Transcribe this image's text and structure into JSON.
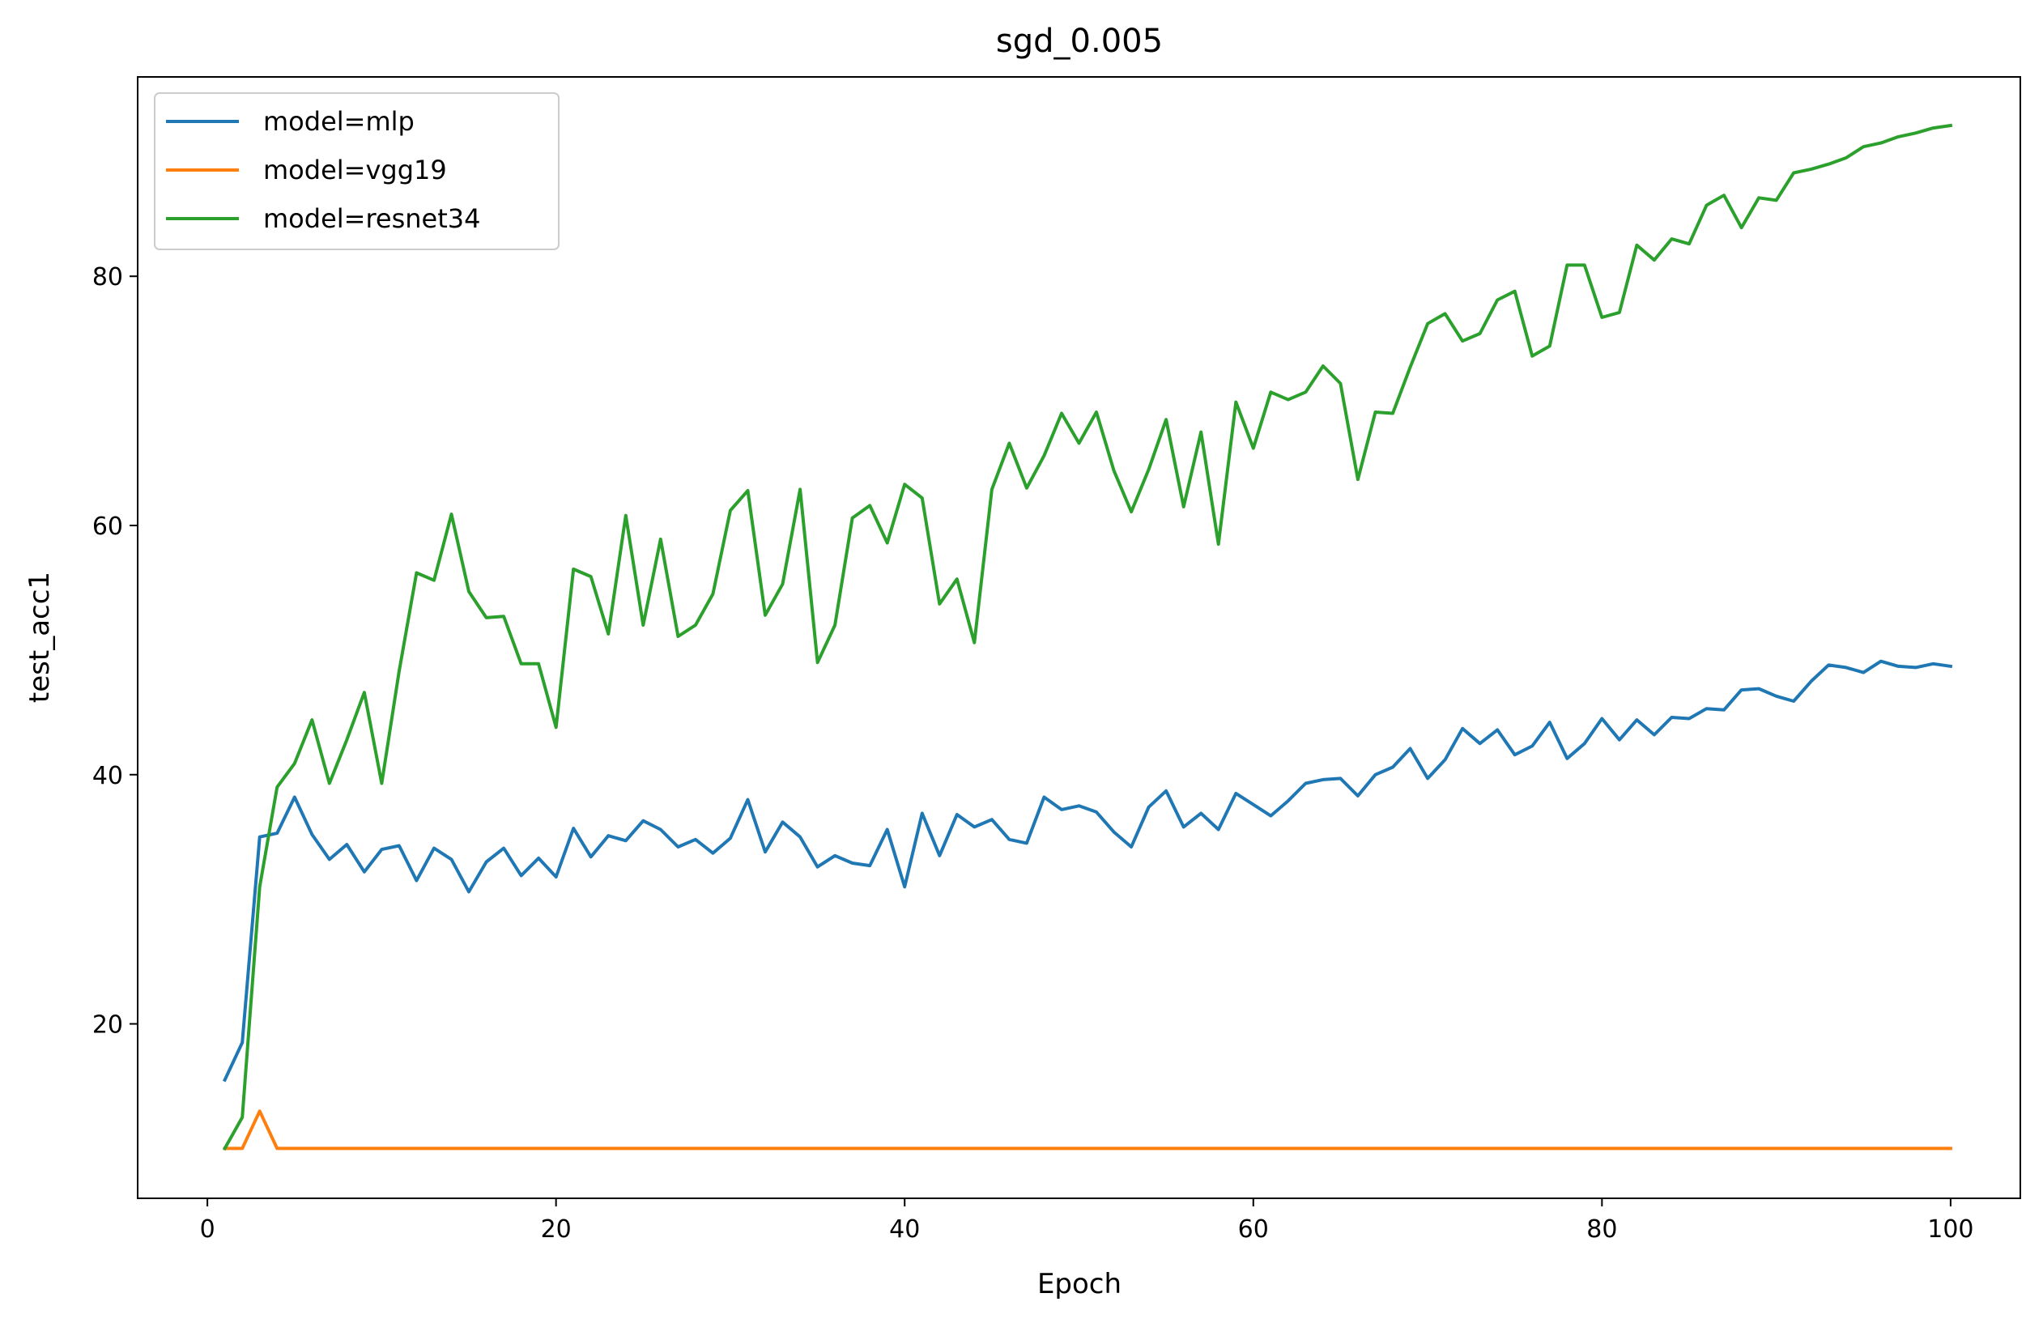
{
  "chart_data": {
    "type": "line",
    "title": "sgd_0.005",
    "xlabel": "Epoch",
    "ylabel": "test_acc1",
    "xlim": [
      -4,
      104
    ],
    "ylim": [
      6,
      96
    ],
    "xticks": [
      0,
      20,
      40,
      60,
      80,
      100
    ],
    "yticks": [
      20,
      40,
      60,
      80
    ],
    "grid": false,
    "legend_position": "top-left",
    "series": [
      {
        "name": "model=mlp",
        "color": "#1f77b4",
        "x": [
          1,
          2,
          3,
          4,
          5,
          6,
          7,
          8,
          9,
          10,
          11,
          12,
          13,
          14,
          15,
          16,
          17,
          18,
          19,
          20,
          21,
          22,
          23,
          24,
          25,
          26,
          27,
          28,
          29,
          30,
          31,
          32,
          33,
          34,
          35,
          36,
          37,
          38,
          39,
          40,
          41,
          42,
          43,
          44,
          45,
          46,
          47,
          48,
          49,
          50,
          51,
          52,
          53,
          54,
          55,
          56,
          57,
          58,
          59,
          60,
          61,
          62,
          63,
          64,
          65,
          66,
          67,
          68,
          69,
          70,
          71,
          72,
          73,
          74,
          75,
          76,
          77,
          78,
          79,
          80,
          81,
          82,
          83,
          84,
          85,
          86,
          87,
          88,
          89,
          90,
          91,
          92,
          93,
          94,
          95,
          96,
          97,
          98,
          99,
          100
        ],
        "y": [
          15.5,
          18.5,
          35.0,
          35.3,
          38.2,
          35.2,
          33.2,
          34.4,
          32.2,
          34.0,
          34.3,
          31.5,
          34.1,
          33.2,
          30.6,
          33.0,
          34.1,
          31.9,
          33.3,
          31.8,
          35.7,
          33.4,
          35.1,
          34.7,
          36.3,
          35.6,
          34.2,
          34.8,
          33.7,
          34.9,
          38.0,
          33.8,
          36.2,
          35.0,
          32.6,
          33.5,
          32.9,
          32.7,
          35.6,
          31.0,
          36.9,
          33.5,
          36.8,
          35.8,
          36.4,
          34.8,
          34.5,
          38.2,
          37.2,
          37.5,
          37.0,
          35.4,
          34.2,
          37.4,
          38.7,
          35.8,
          36.9,
          35.6,
          38.5,
          37.6,
          36.7,
          37.9,
          39.3,
          39.6,
          39.7,
          38.3,
          40.0,
          40.6,
          42.1,
          39.7,
          41.2,
          43.7,
          42.5,
          43.6,
          41.6,
          42.3,
          44.2,
          41.3,
          42.5,
          44.5,
          42.8,
          44.4,
          43.2,
          44.6,
          44.5,
          45.3,
          45.2,
          46.8,
          46.9,
          46.3,
          45.9,
          47.5,
          48.8,
          48.6,
          48.2,
          49.1,
          48.7,
          48.6,
          48.9,
          48.7
        ]
      },
      {
        "name": "model=vgg19",
        "color": "#ff7f0e",
        "x": [
          1,
          2,
          3,
          4,
          5,
          6,
          7,
          8,
          9,
          10,
          11,
          12,
          13,
          14,
          15,
          16,
          17,
          18,
          19,
          20,
          21,
          22,
          23,
          24,
          25,
          26,
          27,
          28,
          29,
          30,
          31,
          32,
          33,
          34,
          35,
          36,
          37,
          38,
          39,
          40,
          41,
          42,
          43,
          44,
          45,
          46,
          47,
          48,
          49,
          50,
          51,
          52,
          53,
          54,
          55,
          56,
          57,
          58,
          59,
          60,
          61,
          62,
          63,
          64,
          65,
          66,
          67,
          68,
          69,
          70,
          71,
          72,
          73,
          74,
          75,
          76,
          77,
          78,
          79,
          80,
          81,
          82,
          83,
          84,
          85,
          86,
          87,
          88,
          89,
          90,
          91,
          92,
          93,
          94,
          95,
          96,
          97,
          98,
          99,
          100
        ],
        "y": [
          10.0,
          10.0,
          13.0,
          10.0,
          10.0,
          10.0,
          10.0,
          10.0,
          10.0,
          10.0,
          10.0,
          10.0,
          10.0,
          10.0,
          10.0,
          10.0,
          10.0,
          10.0,
          10.0,
          10.0,
          10.0,
          10.0,
          10.0,
          10.0,
          10.0,
          10.0,
          10.0,
          10.0,
          10.0,
          10.0,
          10.0,
          10.0,
          10.0,
          10.0,
          10.0,
          10.0,
          10.0,
          10.0,
          10.0,
          10.0,
          10.0,
          10.0,
          10.0,
          10.0,
          10.0,
          10.0,
          10.0,
          10.0,
          10.0,
          10.0,
          10.0,
          10.0,
          10.0,
          10.0,
          10.0,
          10.0,
          10.0,
          10.0,
          10.0,
          10.0,
          10.0,
          10.0,
          10.0,
          10.0,
          10.0,
          10.0,
          10.0,
          10.0,
          10.0,
          10.0,
          10.0,
          10.0,
          10.0,
          10.0,
          10.0,
          10.0,
          10.0,
          10.0,
          10.0,
          10.0,
          10.0,
          10.0,
          10.0,
          10.0,
          10.0,
          10.0,
          10.0,
          10.0,
          10.0,
          10.0,
          10.0,
          10.0,
          10.0,
          10.0,
          10.0,
          10.0,
          10.0,
          10.0,
          10.0,
          10.0
        ]
      },
      {
        "name": "model=resnet34",
        "color": "#2ca02c",
        "x": [
          1,
          2,
          3,
          4,
          5,
          6,
          7,
          8,
          9,
          10,
          11,
          12,
          13,
          14,
          15,
          16,
          17,
          18,
          19,
          20,
          21,
          22,
          23,
          24,
          25,
          26,
          27,
          28,
          29,
          30,
          31,
          32,
          33,
          34,
          35,
          36,
          37,
          38,
          39,
          40,
          41,
          42,
          43,
          44,
          45,
          46,
          47,
          48,
          49,
          50,
          51,
          52,
          53,
          54,
          55,
          56,
          57,
          58,
          59,
          60,
          61,
          62,
          63,
          64,
          65,
          66,
          67,
          68,
          69,
          70,
          71,
          72,
          73,
          74,
          75,
          76,
          77,
          78,
          79,
          80,
          81,
          82,
          83,
          84,
          85,
          86,
          87,
          88,
          89,
          90,
          91,
          92,
          93,
          94,
          95,
          96,
          97,
          98,
          99,
          100
        ],
        "y": [
          10.0,
          12.5,
          31.0,
          39.0,
          40.9,
          44.4,
          39.3,
          42.8,
          46.6,
          39.3,
          48.3,
          56.2,
          55.6,
          60.9,
          54.7,
          52.6,
          52.7,
          48.9,
          48.9,
          43.8,
          56.5,
          55.9,
          51.3,
          60.8,
          52.0,
          58.9,
          51.1,
          52.0,
          54.5,
          61.2,
          62.8,
          52.8,
          55.3,
          62.9,
          49.0,
          52.0,
          60.6,
          61.6,
          58.6,
          63.3,
          62.2,
          53.7,
          55.7,
          50.6,
          62.9,
          66.6,
          63.0,
          65.6,
          69.0,
          66.6,
          69.1,
          64.4,
          61.1,
          64.5,
          68.5,
          61.5,
          67.5,
          58.5,
          69.9,
          66.2,
          70.7,
          70.1,
          70.7,
          72.8,
          71.4,
          63.7,
          69.1,
          69.0,
          72.7,
          76.2,
          77.0,
          74.8,
          75.4,
          78.1,
          78.8,
          73.6,
          74.4,
          80.9,
          80.9,
          76.7,
          77.1,
          82.5,
          81.3,
          83.0,
          82.6,
          85.7,
          86.5,
          83.9,
          86.3,
          86.1,
          88.3,
          88.6,
          89.0,
          89.5,
          90.4,
          90.7,
          91.2,
          91.5,
          91.9,
          92.1
        ]
      }
    ]
  }
}
